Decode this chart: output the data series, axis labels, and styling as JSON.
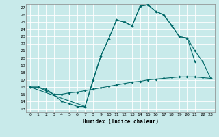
{
  "xlabel": "Humidex (Indice chaleur)",
  "bg_color": "#c8eaea",
  "grid_color": "#ffffff",
  "line_color": "#006868",
  "xlim": [
    -0.5,
    23.5
  ],
  "ylim": [
    12.5,
    27.5
  ],
  "xticks": [
    0,
    1,
    2,
    3,
    4,
    5,
    6,
    7,
    8,
    9,
    10,
    11,
    12,
    13,
    14,
    15,
    16,
    17,
    18,
    19,
    20,
    21,
    22,
    23
  ],
  "yticks": [
    13,
    14,
    15,
    16,
    17,
    18,
    19,
    20,
    21,
    22,
    23,
    24,
    25,
    26,
    27
  ],
  "line1_x": [
    0,
    1,
    2,
    3,
    4,
    5,
    6,
    7,
    8,
    9,
    10,
    11,
    12,
    13,
    14,
    15,
    16,
    17,
    18,
    19,
    20,
    21
  ],
  "line1_y": [
    16.0,
    16.0,
    15.7,
    15.0,
    14.0,
    13.7,
    13.3,
    13.3,
    17.0,
    20.3,
    22.7,
    25.3,
    25.0,
    24.5,
    27.2,
    27.4,
    26.5,
    26.0,
    24.6,
    23.0,
    22.8,
    19.5
  ],
  "line2_x": [
    0,
    1,
    2,
    3,
    4,
    5,
    6,
    7,
    8,
    9,
    10,
    11,
    12,
    13,
    14,
    15,
    16,
    17,
    18,
    19,
    20,
    21,
    22,
    23
  ],
  "line2_y": [
    16.0,
    16.0,
    15.5,
    15.0,
    15.0,
    15.2,
    15.3,
    15.5,
    15.7,
    15.9,
    16.1,
    16.3,
    16.5,
    16.7,
    16.8,
    17.0,
    17.1,
    17.2,
    17.3,
    17.4,
    17.4,
    17.4,
    17.3,
    17.2
  ],
  "line3_x": [
    0,
    7,
    9,
    10,
    11,
    12,
    13,
    14,
    15,
    16,
    17,
    18,
    19,
    20,
    21,
    22,
    23
  ],
  "line3_y": [
    16.0,
    13.3,
    20.3,
    22.7,
    25.3,
    25.0,
    24.5,
    27.2,
    27.4,
    26.5,
    26.0,
    24.6,
    23.0,
    22.8,
    21.0,
    19.5,
    17.2
  ]
}
